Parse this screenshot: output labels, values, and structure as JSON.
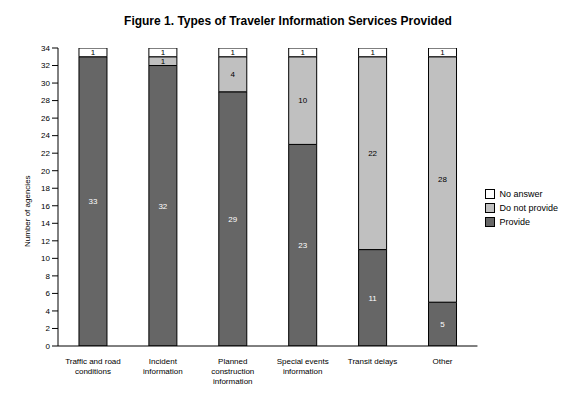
{
  "chart_data": {
    "type": "bar",
    "title": "Figure 1.  Types of Traveler Information Services Provided",
    "y_label": "Number of agencies",
    "categories": [
      "Traffic and road conditions",
      "Incident information",
      "Planned construction information",
      "Special events information",
      "Transit delays",
      "Other"
    ],
    "series": [
      {
        "name": "Provide",
        "color": "#666666",
        "values": [
          33,
          32,
          29,
          23,
          11,
          5
        ]
      },
      {
        "name": "Do not provide",
        "color": "#c0c0c0",
        "values": [
          0,
          1,
          4,
          10,
          22,
          28
        ]
      },
      {
        "name": "No answer",
        "color": "#ffffff",
        "values": [
          1,
          1,
          1,
          1,
          1,
          1
        ]
      }
    ],
    "ylim": [
      0,
      34
    ],
    "yticks": [
      0,
      2,
      4,
      6,
      8,
      10,
      12,
      14,
      16,
      18,
      20,
      22,
      24,
      26,
      28,
      30,
      32,
      34
    ],
    "stacked": true,
    "data_labels": true,
    "legend": "right",
    "grid": false
  }
}
